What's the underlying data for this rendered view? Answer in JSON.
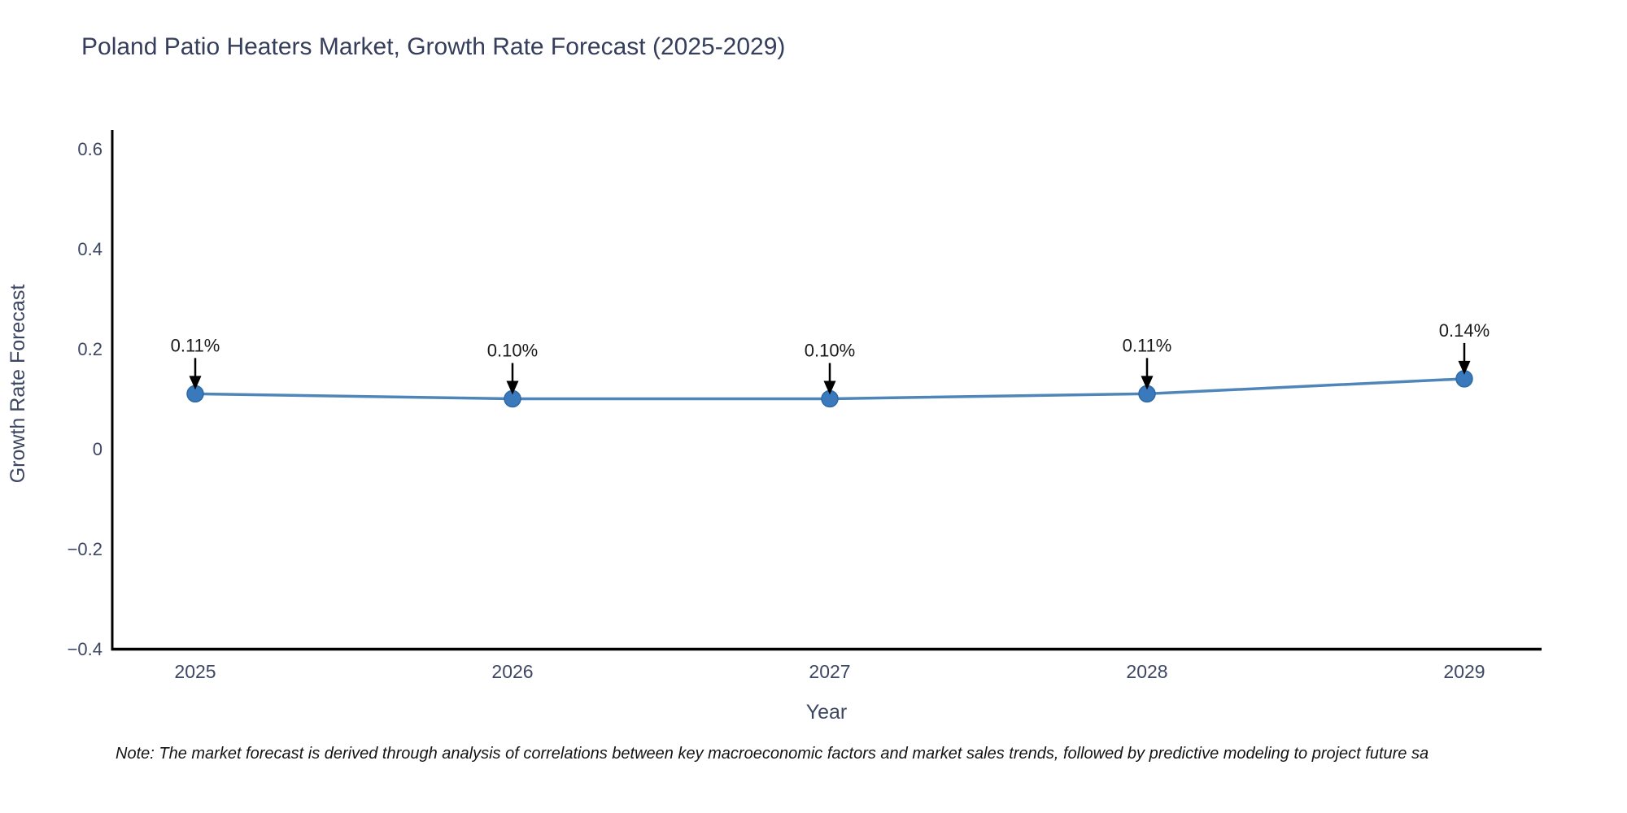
{
  "title": "Poland Patio Heaters Market, Growth Rate Forecast (2025-2029)",
  "note": "Note: The market forecast is derived through analysis of correlations between key macroeconomic factors and market sales trends, followed by predictive modeling to project future sa",
  "chart_data": {
    "type": "line",
    "title": "Poland Patio Heaters Market, Growth Rate Forecast (2025-2029)",
    "categories": [
      "2025",
      "2026",
      "2027",
      "2028",
      "2029"
    ],
    "values": [
      0.11,
      0.1,
      0.1,
      0.11,
      0.14
    ],
    "point_labels": [
      "0.11%",
      "0.10%",
      "0.10%",
      "0.11%",
      "0.14%"
    ],
    "series_name": "Growth Rate Forecast",
    "xlabel": "Year",
    "ylabel": "Growth Rate Forecast",
    "ylim": [
      -0.4,
      0.64
    ],
    "ytick_values": [
      0.6,
      0.4,
      0.2,
      0,
      -0.2,
      -0.4
    ],
    "ytick_labels": [
      "0.6",
      "0.4",
      "0.2",
      "0",
      "−0.2",
      "−0.4"
    ],
    "grid": false,
    "legend_position": "none",
    "annotation_style": "value label with downward black arrow onto each point",
    "colors": {
      "line": "#4e86ba",
      "marker": "#3a79bb",
      "marker_edge": "#2f6aa5",
      "axis_spine": "#000000",
      "tick_text": "#3d4763",
      "axis_title_text": "#3d4763",
      "title_text": "#353e5a",
      "annotation_text": "#1a1a1a",
      "note_text": "#141414",
      "background": "#ffffff"
    }
  }
}
